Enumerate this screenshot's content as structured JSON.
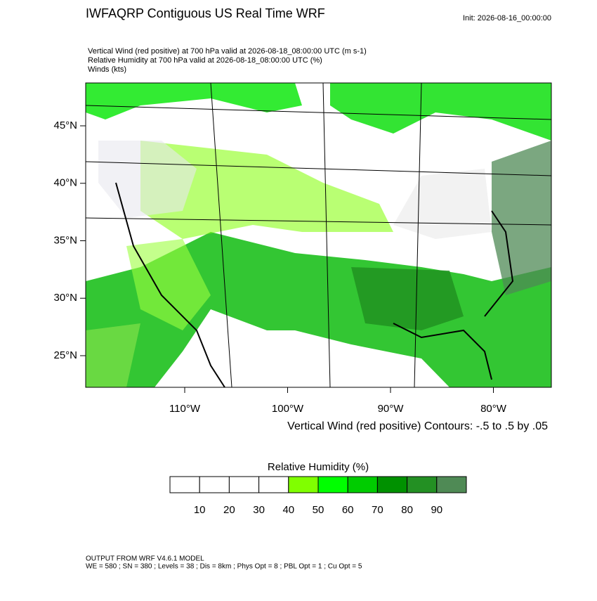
{
  "header": {
    "title": "IWFAQRP Contiguous US Real Time WRF",
    "init": "Init: 2026-08-16_00:00:00",
    "subtitles": [
      "Vertical Wind (red positive) at 700 hPa valid at 2026-08-18_08:00:00 UTC   (m s-1)",
      "Relative Humidity at 700 hPa valid at 2026-08-18_08:00:00 UTC   (%)",
      "Winds   (kts)"
    ]
  },
  "map": {
    "lat_labels": [
      {
        "value": 45,
        "label": "45°N"
      },
      {
        "value": 40,
        "label": "40°N"
      },
      {
        "value": 35,
        "label": "35°N"
      },
      {
        "value": 30,
        "label": "30°N"
      },
      {
        "value": 25,
        "label": "25°N"
      }
    ],
    "lon_labels": [
      {
        "value": -110,
        "label": "110°W"
      },
      {
        "value": -100,
        "label": "100°W"
      },
      {
        "value": -90,
        "label": "90°W"
      },
      {
        "value": -80,
        "label": "80°W"
      }
    ],
    "contour_note": "Vertical Wind (red positive) Contours: -.5 to .5 by .05"
  },
  "colorbar": {
    "title": "Relative Humidity  (%)",
    "labels": [
      10,
      20,
      30,
      40,
      50,
      60,
      70,
      80,
      90
    ],
    "colors": [
      "#ffffff",
      "#ffffff",
      "#ffffff",
      "#ffffff",
      "#80ff00",
      "#00ff00",
      "#00cc00",
      "#009100",
      "#239023",
      "#4f8a55"
    ]
  },
  "footer": [
    "OUTPUT FROM WRF V4.6.1 MODEL",
    "WE = 580 ; SN = 380 ; Levels = 38 ; Dis = 8km ; Phys Opt = 8 ; PBL Opt = 1 ; Cu Opt = 5"
  ]
}
